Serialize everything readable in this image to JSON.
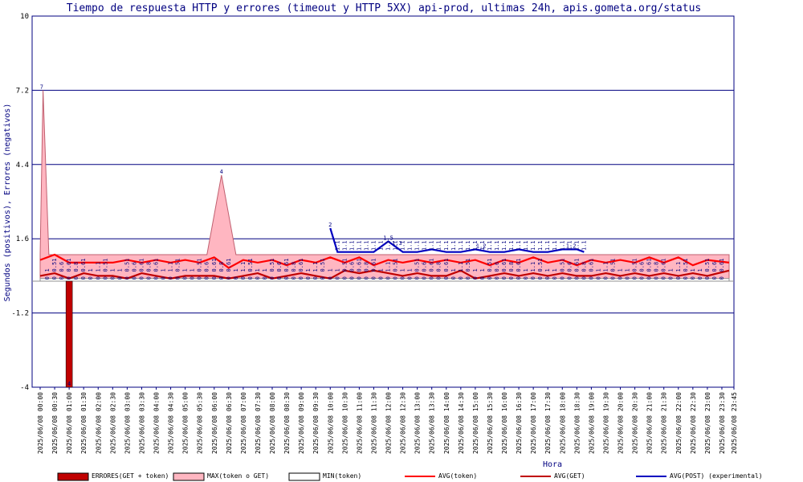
{
  "chart_data": {
    "type": "line",
    "title": "Tiempo de respuesta HTTP y errores (timeout y HTTP 5XX) api-prod, ultimas 24h, apis.gometa.org/status",
    "xlabel": "Hora",
    "ylabel": "Segundos (positivos), Errores (negativos)",
    "ylim": [
      -4,
      10
    ],
    "yticks": [
      10,
      7.2,
      4.4,
      1.6,
      -1.2,
      -4
    ],
    "yticks_labels": [
      "10",
      "7.2",
      "4.4",
      "1.6",
      "-1.2",
      "-4"
    ],
    "grid": "horizontal",
    "x_ticks": [
      "2025/06/08 00:00",
      "2025/06/08 00:30",
      "2025/06/08 01:00",
      "2025/06/08 01:30",
      "2025/06/08 02:00",
      "2025/06/08 02:30",
      "2025/06/08 03:00",
      "2025/06/08 03:30",
      "2025/06/08 04:00",
      "2025/06/08 04:30",
      "2025/06/08 05:00",
      "2025/06/08 05:30",
      "2025/06/08 06:00",
      "2025/06/08 06:30",
      "2025/06/08 07:00",
      "2025/06/08 07:30",
      "2025/06/08 08:00",
      "2025/06/08 08:30",
      "2025/06/08 09:00",
      "2025/06/08 09:30",
      "2025/06/08 10:00",
      "2025/06/08 10:30",
      "2025/06/08 11:00",
      "2025/06/08 11:30",
      "2025/06/08 12:00",
      "2025/06/08 12:30",
      "2025/06/08 13:00",
      "2025/06/08 13:30",
      "2025/06/08 14:00",
      "2025/06/08 14:30",
      "2025/06/08 15:00",
      "2025/06/08 15:30",
      "2025/06/08 16:00",
      "2025/06/08 16:30",
      "2025/06/08 17:00",
      "2025/06/08 17:30",
      "2025/06/08 18:00",
      "2025/06/08 18:30",
      "2025/06/08 19:00",
      "2025/06/08 19:30",
      "2025/06/08 20:00",
      "2025/06/08 20:30",
      "2025/06/08 21:00",
      "2025/06/08 21:30",
      "2025/06/08 22:00",
      "2025/06/08 22:30",
      "2025/06/08 23:00",
      "2025/06/08 23:30",
      "2025/06/08 23:45"
    ],
    "x_range_hours": [
      0,
      23.75
    ],
    "legend_position": "bottom",
    "series": [
      {
        "name": "ERRORES(GET + token)",
        "kind": "bar",
        "color": "#c00000",
        "points": [
          [
            1.0,
            -4
          ]
        ]
      },
      {
        "name": "MAX(token o GET)",
        "kind": "area",
        "color": "#ffb6c1",
        "stroke": "#c06070",
        "points": [
          [
            0,
            1.0
          ],
          [
            0.1,
            7.2
          ],
          [
            0.3,
            1.0
          ],
          [
            1.0,
            1.0
          ],
          [
            1.5,
            1.0
          ],
          [
            2,
            1.0
          ],
          [
            3,
            1.0
          ],
          [
            4,
            1.0
          ],
          [
            5,
            1.0
          ],
          [
            5.75,
            1.0
          ],
          [
            6.25,
            4.0
          ],
          [
            6.75,
            1.0
          ],
          [
            7,
            1.0
          ],
          [
            8,
            1.0
          ],
          [
            9,
            1.0
          ],
          [
            10,
            1.0
          ],
          [
            11,
            1.0
          ],
          [
            12,
            1.0
          ],
          [
            13,
            1.0
          ],
          [
            14,
            1.0
          ],
          [
            15,
            1.0
          ],
          [
            16,
            1.0
          ],
          [
            17,
            1.0
          ],
          [
            18,
            1.0
          ],
          [
            19,
            1.0
          ],
          [
            20,
            1.0
          ],
          [
            21,
            1.0
          ],
          [
            22,
            1.0
          ],
          [
            23,
            1.0
          ],
          [
            23.75,
            1.0
          ]
        ]
      },
      {
        "name": "MIN(token)",
        "kind": "area",
        "color": "#ffffff",
        "stroke": "#909090",
        "points": [
          [
            0,
            0.1
          ],
          [
            23.75,
            0.1
          ]
        ]
      },
      {
        "name": "AVG(token)",
        "kind": "line",
        "color": "#ff0000",
        "points": [
          [
            0,
            0.8
          ],
          [
            0.5,
            1.0
          ],
          [
            1,
            0.7
          ],
          [
            1.5,
            0.7
          ],
          [
            2,
            0.7
          ],
          [
            2.5,
            0.7
          ],
          [
            3,
            0.8
          ],
          [
            3.5,
            0.7
          ],
          [
            4,
            0.8
          ],
          [
            4.5,
            0.7
          ],
          [
            5,
            0.8
          ],
          [
            5.5,
            0.7
          ],
          [
            6,
            0.9
          ],
          [
            6.5,
            0.5
          ],
          [
            7,
            0.8
          ],
          [
            7.5,
            0.7
          ],
          [
            8,
            0.8
          ],
          [
            8.5,
            0.6
          ],
          [
            9,
            0.8
          ],
          [
            9.5,
            0.7
          ],
          [
            10,
            0.9
          ],
          [
            10.5,
            0.7
          ],
          [
            11,
            0.9
          ],
          [
            11.5,
            0.6
          ],
          [
            12,
            0.8
          ],
          [
            12.5,
            0.7
          ],
          [
            13,
            0.8
          ],
          [
            13.5,
            0.7
          ],
          [
            14,
            0.8
          ],
          [
            14.5,
            0.7
          ],
          [
            15,
            0.8
          ],
          [
            15.5,
            0.6
          ],
          [
            16,
            0.8
          ],
          [
            16.5,
            0.7
          ],
          [
            17,
            0.9
          ],
          [
            17.5,
            0.7
          ],
          [
            18,
            0.8
          ],
          [
            18.5,
            0.6
          ],
          [
            19,
            0.8
          ],
          [
            19.5,
            0.7
          ],
          [
            20,
            0.8
          ],
          [
            20.5,
            0.7
          ],
          [
            21,
            0.9
          ],
          [
            21.5,
            0.7
          ],
          [
            22,
            0.9
          ],
          [
            22.5,
            0.6
          ],
          [
            23,
            0.8
          ],
          [
            23.75,
            0.7
          ]
        ]
      },
      {
        "name": "AVG(GET)",
        "kind": "line",
        "color": "#c00000",
        "points": [
          [
            0,
            0.2
          ],
          [
            0.5,
            0.3
          ],
          [
            1,
            0.1
          ],
          [
            1.5,
            0.3
          ],
          [
            2,
            0.2
          ],
          [
            2.5,
            0.2
          ],
          [
            3,
            0.1
          ],
          [
            3.5,
            0.3
          ],
          [
            4,
            0.2
          ],
          [
            4.5,
            0.1
          ],
          [
            5,
            0.2
          ],
          [
            5.5,
            0.2
          ],
          [
            6,
            0.2
          ],
          [
            6.5,
            0.1
          ],
          [
            7,
            0.2
          ],
          [
            7.5,
            0.3
          ],
          [
            8,
            0.1
          ],
          [
            8.5,
            0.2
          ],
          [
            9,
            0.3
          ],
          [
            9.5,
            0.2
          ],
          [
            10,
            0.1
          ],
          [
            10.5,
            0.4
          ],
          [
            11,
            0.3
          ],
          [
            11.5,
            0.4
          ],
          [
            12,
            0.3
          ],
          [
            12.5,
            0.2
          ],
          [
            13,
            0.3
          ],
          [
            13.5,
            0.2
          ],
          [
            14,
            0.2
          ],
          [
            14.5,
            0.4
          ],
          [
            15,
            0.1
          ],
          [
            15.5,
            0.2
          ],
          [
            16,
            0.3
          ],
          [
            16.5,
            0.2
          ],
          [
            17,
            0.3
          ],
          [
            17.5,
            0.2
          ],
          [
            18,
            0.3
          ],
          [
            18.5,
            0.2
          ],
          [
            19,
            0.2
          ],
          [
            19.5,
            0.3
          ],
          [
            20,
            0.2
          ],
          [
            20.5,
            0.3
          ],
          [
            21,
            0.2
          ],
          [
            21.5,
            0.3
          ],
          [
            22,
            0.2
          ],
          [
            22.5,
            0.3
          ],
          [
            23,
            0.2
          ],
          [
            23.75,
            0.4
          ]
        ]
      },
      {
        "name": "AVG(POST) (experimental)",
        "kind": "line",
        "color": "#0000c0",
        "points": [
          [
            10,
            2.0
          ],
          [
            10.25,
            1.1
          ],
          [
            10.5,
            1.1
          ],
          [
            11,
            1.1
          ],
          [
            11.5,
            1.1
          ],
          [
            12,
            1.5
          ],
          [
            12.5,
            1.1
          ],
          [
            13,
            1.1
          ],
          [
            13.5,
            1.2
          ],
          [
            14,
            1.1
          ],
          [
            14.5,
            1.1
          ],
          [
            15,
            1.2
          ],
          [
            15.5,
            1.1
          ],
          [
            16,
            1.1
          ],
          [
            16.5,
            1.2
          ],
          [
            17,
            1.1
          ],
          [
            17.5,
            1.1
          ],
          [
            18,
            1.2
          ],
          [
            18.5,
            1.2
          ],
          [
            18.75,
            1.1
          ]
        ]
      }
    ],
    "data_labels": [
      {
        "x": 0.05,
        "y": 7.2,
        "text": "7"
      },
      {
        "x": 6.25,
        "y": 4.0,
        "text": "4"
      },
      {
        "x": 10.0,
        "y": 2.0,
        "text": "2"
      },
      {
        "x": 12.0,
        "y": 1.5,
        "text": "1.5"
      },
      {
        "x": 12.3,
        "y": 1.3,
        "text": "1.3"
      },
      {
        "x": 15.2,
        "y": 1.2,
        "text": "1.2"
      },
      {
        "x": 18.3,
        "y": 1.2,
        "text": "1.2"
      },
      {
        "x": 1.0,
        "y": -4,
        "text": "4"
      }
    ],
    "repeating_value_labels": [
      "1",
      "0.51",
      "0.6",
      "0.61",
      "0.8",
      "0.61",
      "1",
      "1.1",
      "0.51",
      "1"
    ]
  },
  "legend": [
    {
      "label": "ERRORES(GET + token)",
      "fill": "#c00000",
      "stroke": "#000000",
      "kind": "box"
    },
    {
      "label": "MAX(token o GET)",
      "fill": "#ffb6c1",
      "stroke": "#000000",
      "kind": "box"
    },
    {
      "label": "MIN(token)",
      "fill": "#ffffff",
      "stroke": "#000000",
      "kind": "box"
    },
    {
      "label": "AVG(token)",
      "fill": "#ff0000",
      "kind": "line"
    },
    {
      "label": "AVG(GET)",
      "fill": "#c00000",
      "kind": "line"
    },
    {
      "label": "AVG(POST) (experimental)",
      "fill": "#0000c0",
      "kind": "line"
    }
  ]
}
